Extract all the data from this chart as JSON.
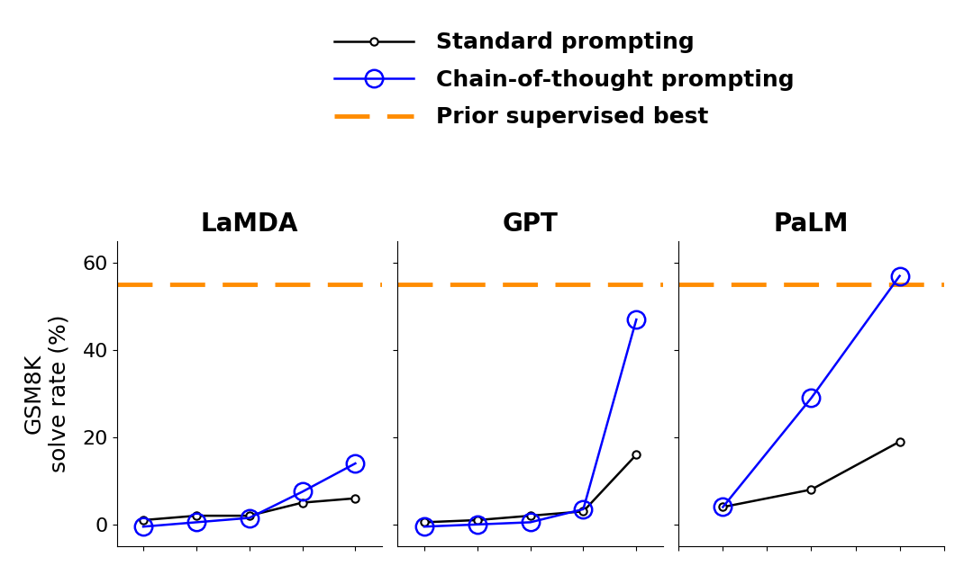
{
  "title": "",
  "ylabel": "GSM8K\nsolve rate (%)",
  "prior_best": 55,
  "prior_best_color": "#FF8C00",
  "subplots": [
    "LaMDA",
    "GPT",
    "PaLM"
  ],
  "lamda": {
    "x": [
      1,
      2,
      3,
      4,
      5
    ],
    "standard": [
      1.0,
      2.0,
      2.0,
      5.0,
      6.0
    ],
    "cot": [
      -0.5,
      0.5,
      1.5,
      7.5,
      14.0
    ]
  },
  "gpt": {
    "x": [
      1,
      2,
      3,
      4,
      5
    ],
    "standard": [
      0.5,
      1.0,
      2.0,
      3.0,
      16.0
    ],
    "cot": [
      -0.5,
      0.0,
      0.5,
      3.5,
      47.0
    ]
  },
  "palm": {
    "x": [
      1,
      2,
      3
    ],
    "standard": [
      4.0,
      8.0,
      19.0
    ],
    "cot": [
      4.0,
      29.0,
      57.0
    ]
  },
  "standard_color": "#000000",
  "cot_color": "#0000FF",
  "background_color": "#FFFFFF",
  "legend_labels": [
    "Standard prompting",
    "Chain-of-thought prompting",
    "Prior supervised best"
  ],
  "ylim": [
    -5,
    65
  ],
  "yticks": [
    0,
    20,
    40,
    60
  ],
  "standard_marker_size": 6,
  "cot_marker_size": 14,
  "line_width": 1.8,
  "title_fontsize": 20,
  "label_fontsize": 18,
  "tick_fontsize": 16,
  "legend_fontsize": 18
}
